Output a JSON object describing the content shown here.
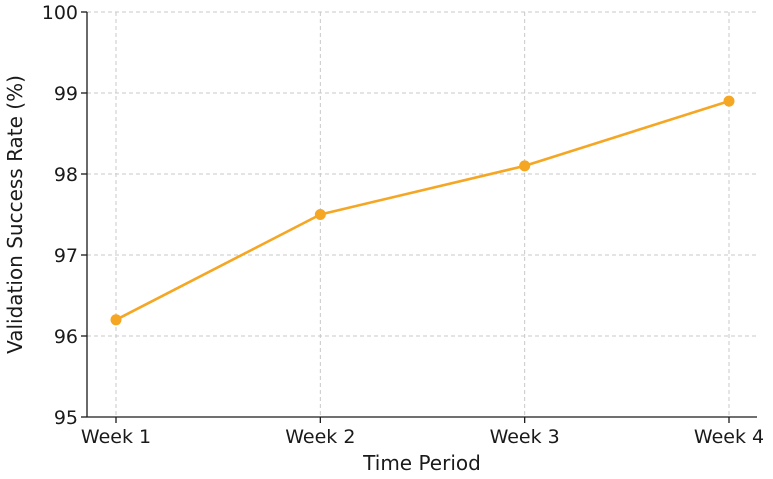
{
  "chart_data": {
    "type": "line",
    "categories": [
      "Week 1",
      "Week 2",
      "Week 3",
      "Week 4"
    ],
    "series": [
      {
        "values": [
          96.2,
          97.5,
          98.1,
          98.9
        ],
        "color": "#f5a623"
      }
    ],
    "xlabel": "Time Period",
    "ylabel": "Validation Success Rate (%)",
    "ylim": [
      95,
      100
    ],
    "yticks": [
      95,
      96,
      97,
      98,
      99,
      100
    ],
    "grid": true,
    "marker": "circle"
  }
}
